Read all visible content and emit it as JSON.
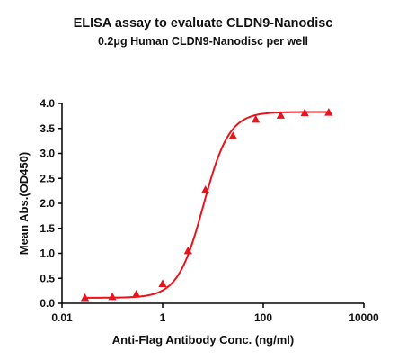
{
  "chart_data": {
    "type": "scatter",
    "title": "ELISA assay to evaluate CLDN9-Nanodisc",
    "subtitle": "0.2μg Human CLDN9-Nanodisc per well",
    "xlabel": "Anti-Flag Antibody Conc. (ng/ml)",
    "ylabel": "Mean Abs.(OD450)",
    "x_scale": "log",
    "xlim": [
      0.01,
      10000
    ],
    "ylim": [
      0.0,
      4.0
    ],
    "x_ticks": [
      {
        "value": 0.01,
        "label": "0.01"
      },
      {
        "value": 1,
        "label": "1"
      },
      {
        "value": 100,
        "label": "100"
      },
      {
        "value": 10000,
        "label": "10000"
      }
    ],
    "y_ticks": [
      {
        "value": 0.0,
        "label": "0.0"
      },
      {
        "value": 0.5,
        "label": "0.5"
      },
      {
        "value": 1.0,
        "label": "1.0"
      },
      {
        "value": 1.5,
        "label": "1.5"
      },
      {
        "value": 2.0,
        "label": "2.0"
      },
      {
        "value": 2.5,
        "label": "2.5"
      },
      {
        "value": 3.0,
        "label": "3.0"
      },
      {
        "value": 3.5,
        "label": "3.5"
      },
      {
        "value": 4.0,
        "label": "4.0"
      }
    ],
    "grid": false,
    "series": [
      {
        "marker": "triangle",
        "color": "#e8141c",
        "points": [
          {
            "x": 0.0286,
            "y": 0.11
          },
          {
            "x": 0.1,
            "y": 0.13
          },
          {
            "x": 0.3,
            "y": 0.18
          },
          {
            "x": 1.0,
            "y": 0.39
          },
          {
            "x": 3.2,
            "y": 1.05
          },
          {
            "x": 7.1,
            "y": 2.27
          },
          {
            "x": 25,
            "y": 3.35
          },
          {
            "x": 71,
            "y": 3.68
          },
          {
            "x": 222,
            "y": 3.76
          },
          {
            "x": 667,
            "y": 3.81
          },
          {
            "x": 2000,
            "y": 3.82
          }
        ],
        "fit_curve": {
          "model": "4PL",
          "bottom": 0.11,
          "top": 3.83,
          "ec50": 6.5,
          "hill": 1.7
        }
      }
    ]
  }
}
